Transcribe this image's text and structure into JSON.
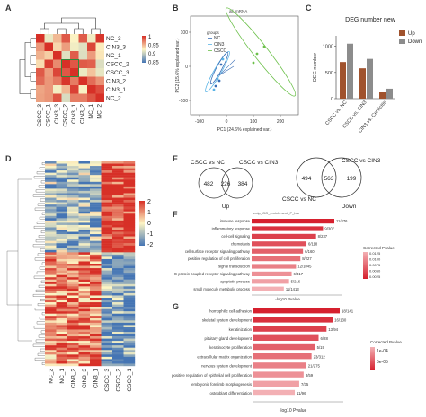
{
  "panels": {
    "A": {
      "letter": "A",
      "samples_right": [
        "NC_3",
        "CIN3_3",
        "NC_1",
        "CSCC_2",
        "CSCC_3",
        "CIN3_2",
        "CIN3_1",
        "NC_2"
      ],
      "samples_bottom": [
        "CSCC_3",
        "CSCC_1",
        "CIN3_3",
        "CSCC_2",
        "CIN3_1",
        "CIN3_2",
        "NC_1",
        "NC_2"
      ],
      "legend_ticks": [
        "1",
        "0.95",
        "0.9",
        "0.85"
      ],
      "colors": {
        "high": "#d73027",
        "mid": "#fdf5c4",
        "low": "#4575b4"
      }
    },
    "B": {
      "letter": "B",
      "title": "all_mRNA",
      "legend_title": "groups",
      "groups": [
        {
          "name": "NC",
          "color": "#3b6fb6"
        },
        {
          "name": "CIN3",
          "color": "#5ab4e6"
        },
        {
          "name": "CSCC",
          "color": "#6cc04a"
        }
      ],
      "xlabel": "PC1 (24.6% explained var.)",
      "ylabel": "PC2 (15.6% explained var.)",
      "x_ticks": [
        "-100",
        "0",
        "100",
        "200"
      ],
      "y_ticks": [
        "100",
        "0",
        "-100"
      ]
    },
    "C": {
      "letter": "C",
      "title": "DEG number new",
      "ylabel": "DEG number",
      "legend": [
        {
          "name": "Up",
          "color": "#a0522d"
        },
        {
          "name": "Down",
          "color": "#8c8c8c"
        }
      ],
      "y_ticks": [
        "0",
        "500",
        "1000"
      ],
      "chart_data": {
        "type": "bar",
        "categories": [
          "CSCC vs. NC",
          "CSCC vs. CIN3",
          "CIN3 vs. Cervicitis"
        ],
        "series": [
          {
            "name": "Up",
            "values": [
              700,
              580,
              120
            ]
          },
          {
            "name": "Down",
            "values": [
              1050,
              760,
              190
            ]
          }
        ],
        "ylim": [
          0,
          1200
        ]
      }
    },
    "D": {
      "letter": "D",
      "legend_ticks": [
        "2",
        "1",
        "0",
        "-1",
        "-2"
      ],
      "col_labels": [
        "NC_2",
        "NC_1",
        "CIN3_2",
        "CIN3_3",
        "CIN3_1",
        "CSCC_3",
        "CSCC_2",
        "CSCC_1"
      ]
    },
    "E": {
      "letter": "E",
      "up": {
        "left_label": "CSCC vs NC",
        "right_label": "CSCC vs CIN3",
        "left_only": "482",
        "both": "226",
        "right_only": "384",
        "caption": "Up"
      },
      "down": {
        "left_label": "CSCC vs NC",
        "right_label": "CSCC vs CIN3",
        "left_only": "494",
        "both": "563",
        "right_only": "199",
        "caption": "Down"
      }
    },
    "F": {
      "letter": "F",
      "title": "eotp_GO_enrichment_P_bar",
      "xlabel": "-log10 Pvalue",
      "legend_title": "Corrected Pvalue",
      "legend_ticks": [
        "0.0125",
        "0.0100",
        "0.0075",
        "0.0050",
        "0.0025"
      ],
      "chart_data": {
        "type": "bar",
        "categories": [
          "immune response",
          "inflammatory response",
          "cell-cell signaling",
          "chemotaxis",
          "cell surface receptor signaling pathway",
          "positive regulation of cell proliferation",
          "signal transduction",
          "G-protein coupled receptor signaling pathway",
          "apoptotic process",
          "small molecule metabolic process"
        ],
        "values": [
          9.5,
          8.2,
          7.4,
          6.3,
          5.9,
          5.6,
          5.1,
          4.6,
          4.3,
          3.7
        ],
        "labels": [
          "11/476",
          "9/307",
          "8/237",
          "6/118",
          "6/160",
          "8/227",
          "12/1045",
          "6/317",
          "5/216",
          "11/1413"
        ]
      }
    },
    "G": {
      "letter": "G",
      "xlabel": "-log10 Pvalue",
      "legend_title": "Corrected Pvalue",
      "legend_ticks": [
        "1e-04",
        "5e-05"
      ],
      "chart_data": {
        "type": "bar",
        "categories": [
          "homophilic cell adhesion",
          "skeletal system development",
          "keratinization",
          "pituitary gland development",
          "keratinocyte proliferation",
          "extracellular matrix organization",
          "nervous system development",
          "positive regulation of epithelial cell proliferation",
          "embryonic forelimb morphogenesis",
          "osteoblast differentiation"
        ],
        "values": [
          9.8,
          9.0,
          8.3,
          7.4,
          7.0,
          6.6,
          6.0,
          5.7,
          5.2,
          4.7
        ],
        "labels": [
          "18/141",
          "16/130",
          "13/94",
          "6/28",
          "5/19",
          "23/312",
          "21/275",
          "8/59",
          "7/35",
          "11/96"
        ]
      }
    }
  }
}
